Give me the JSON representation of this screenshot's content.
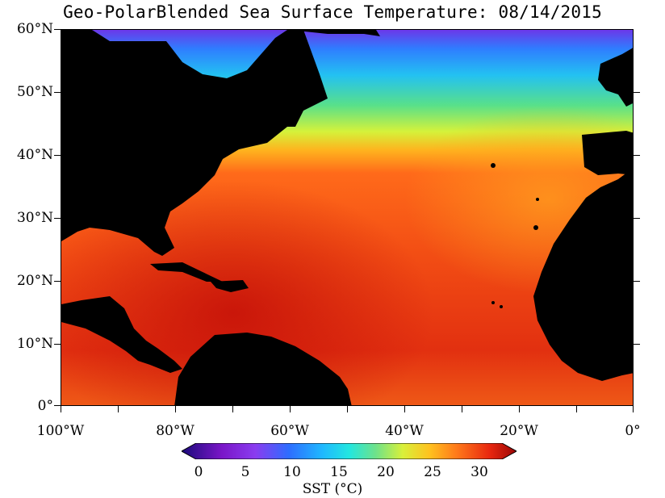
{
  "title": "Geo-PolarBlended Sea Surface Temperature: 08/14/2015",
  "y_axis_labels": [
    "60°N",
    "50°N",
    "40°N",
    "30°N",
    "20°N",
    "10°N",
    "0°"
  ],
  "x_axis_labels": [
    "100°W",
    "80°W",
    "60°W",
    "40°W",
    "20°W",
    "0°"
  ],
  "colorbar": {
    "tick_labels": [
      "0",
      "5",
      "10",
      "15",
      "20",
      "25",
      "30"
    ],
    "title": "SST (°C)",
    "min": 0,
    "max": 32
  },
  "colors": {
    "land": "#000000",
    "cold_north": "#2aa3ff",
    "mid_lat": "#8fe85a",
    "subtropical": "#ff6a1a",
    "tropical": "#e0250e",
    "hot_caribbean": "#c41008"
  }
}
